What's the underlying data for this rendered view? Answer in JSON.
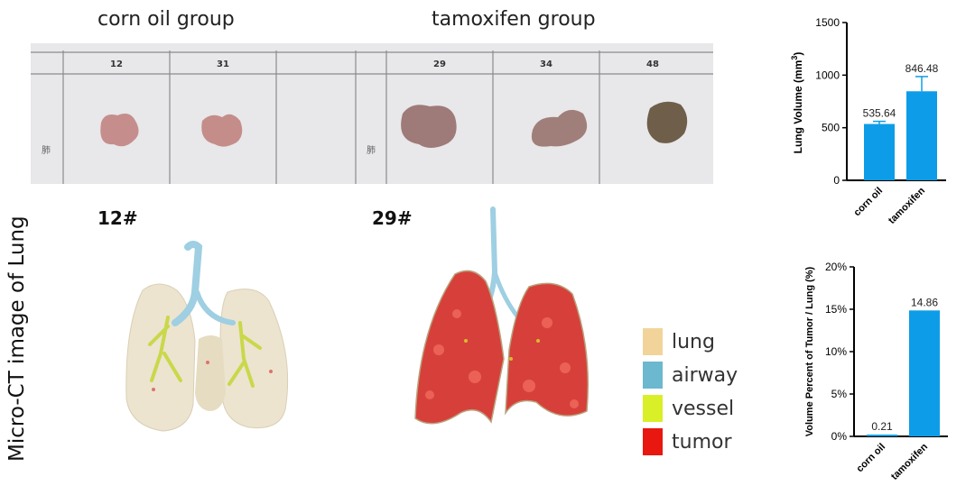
{
  "group_titles": {
    "corn": "corn oil group",
    "tamox": "tamoxifen group"
  },
  "photo": {
    "specimen_numbers": [
      "12",
      "31",
      "29",
      "34",
      "48"
    ],
    "side_label": "肺"
  },
  "ct_images": {
    "left_number": "12#",
    "right_number": "29#"
  },
  "vertical_title": "Micro-CT image of Lung",
  "legend": [
    {
      "label": "lung",
      "color": "#f2d49b"
    },
    {
      "label": "airway",
      "color": "#6cb8cf"
    },
    {
      "label": "vessel",
      "color": "#d9ef27"
    },
    {
      "label": "tumor",
      "color": "#e8170f"
    }
  ],
  "chart_data": [
    {
      "type": "bar",
      "categories": [
        "corn oil",
        "tamoxifen"
      ],
      "values": [
        535.64,
        846.48
      ],
      "value_labels": [
        "535.64",
        "846.48"
      ],
      "errors": [
        25,
        140
      ],
      "ylabel_main": "Lung Volume (mm",
      "ylabel_sup": "3",
      "ylabel_end": ")",
      "ylim": [
        0,
        1500
      ],
      "yticks": [
        0,
        500,
        1000,
        1500
      ],
      "ytick_labels": [
        "0",
        "500",
        "1000",
        "1500"
      ],
      "bar_color": "#0d9de8"
    },
    {
      "type": "bar",
      "categories": [
        "corn oil",
        "tamoxifen"
      ],
      "values": [
        0.21,
        14.86
      ],
      "value_labels": [
        "0.21",
        "14.86"
      ],
      "ylabel": "Volume Percent of Tumor / Lung (%)",
      "ylim": [
        0,
        20
      ],
      "yticks": [
        0,
        5,
        10,
        15,
        20
      ],
      "ytick_labels": [
        "0%",
        "5%",
        "10%",
        "15%",
        "20%"
      ],
      "bar_color": "#0d9de8"
    }
  ]
}
